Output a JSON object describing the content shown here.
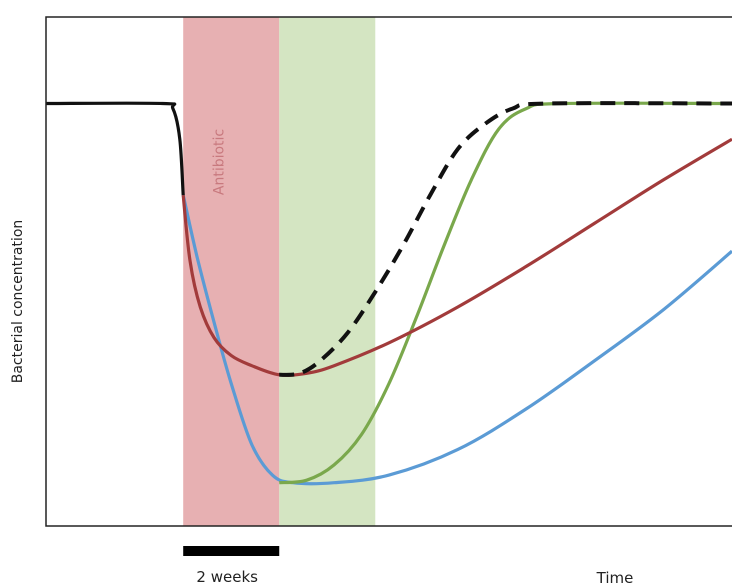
{
  "chart_data": {
    "type": "line",
    "title": "",
    "xlabel": "Time",
    "ylabel": "Bacterial concentration",
    "scale_bar_label": "2 weeks",
    "grid": false,
    "legend": "none",
    "x_range": [
      0,
      10
    ],
    "y_range": [
      0,
      10
    ],
    "regions": [
      {
        "label": "Antibiotic",
        "x_start": 2,
        "x_end": 3.4,
        "color": "#e3a2a4"
      },
      {
        "label": "",
        "x_start": 3.4,
        "x_end": 4.8,
        "color": "#cfe2bb"
      }
    ],
    "series": [
      {
        "id": "baseline",
        "color": "#111111",
        "style": "solid",
        "points": [
          [
            0,
            8.3
          ],
          [
            1.7,
            8.3
          ],
          [
            1.85,
            8.2
          ],
          [
            1.95,
            7.6
          ],
          [
            2.0,
            6.5
          ]
        ]
      },
      {
        "id": "red",
        "color": "#a23b3b",
        "style": "solid",
        "points": [
          [
            2.0,
            6.5
          ],
          [
            2.1,
            5.2
          ],
          [
            2.25,
            4.3
          ],
          [
            2.45,
            3.7
          ],
          [
            2.7,
            3.35
          ],
          [
            3.0,
            3.15
          ],
          [
            3.4,
            2.97
          ],
          [
            3.8,
            3.0
          ],
          [
            4.2,
            3.15
          ],
          [
            5,
            3.6
          ],
          [
            6,
            4.3
          ],
          [
            7,
            5.1
          ],
          [
            8,
            5.95
          ],
          [
            9,
            6.8
          ],
          [
            10,
            7.6
          ]
        ]
      },
      {
        "id": "blue",
        "color": "#5b9bd5",
        "style": "solid",
        "points": [
          [
            2.0,
            6.5
          ],
          [
            2.2,
            5.3
          ],
          [
            2.45,
            4.0
          ],
          [
            2.7,
            2.8
          ],
          [
            3.0,
            1.6
          ],
          [
            3.3,
            1.0
          ],
          [
            3.6,
            0.85
          ],
          [
            4.2,
            0.85
          ],
          [
            5,
            1.0
          ],
          [
            6,
            1.5
          ],
          [
            7,
            2.3
          ],
          [
            8,
            3.25
          ],
          [
            9,
            4.25
          ],
          [
            10,
            5.4
          ]
        ]
      },
      {
        "id": "green",
        "color": "#7aa84c",
        "style": "solid",
        "points": [
          [
            3.4,
            0.85
          ],
          [
            3.8,
            0.9
          ],
          [
            4.2,
            1.2
          ],
          [
            4.6,
            1.8
          ],
          [
            5,
            2.8
          ],
          [
            5.4,
            4.1
          ],
          [
            5.8,
            5.5
          ],
          [
            6.2,
            6.8
          ],
          [
            6.6,
            7.8
          ],
          [
            7.0,
            8.2
          ],
          [
            7.5,
            8.3
          ],
          [
            10,
            8.3
          ]
        ]
      },
      {
        "id": "dashed",
        "color": "#111111",
        "style": "dashed",
        "points": [
          [
            3.4,
            2.97
          ],
          [
            3.7,
            3.0
          ],
          [
            4.0,
            3.25
          ],
          [
            4.4,
            3.8
          ],
          [
            4.8,
            4.6
          ],
          [
            5.2,
            5.5
          ],
          [
            5.6,
            6.5
          ],
          [
            6.0,
            7.4
          ],
          [
            6.4,
            7.9
          ],
          [
            6.8,
            8.2
          ],
          [
            7.3,
            8.3
          ],
          [
            10,
            8.3
          ]
        ]
      }
    ]
  }
}
